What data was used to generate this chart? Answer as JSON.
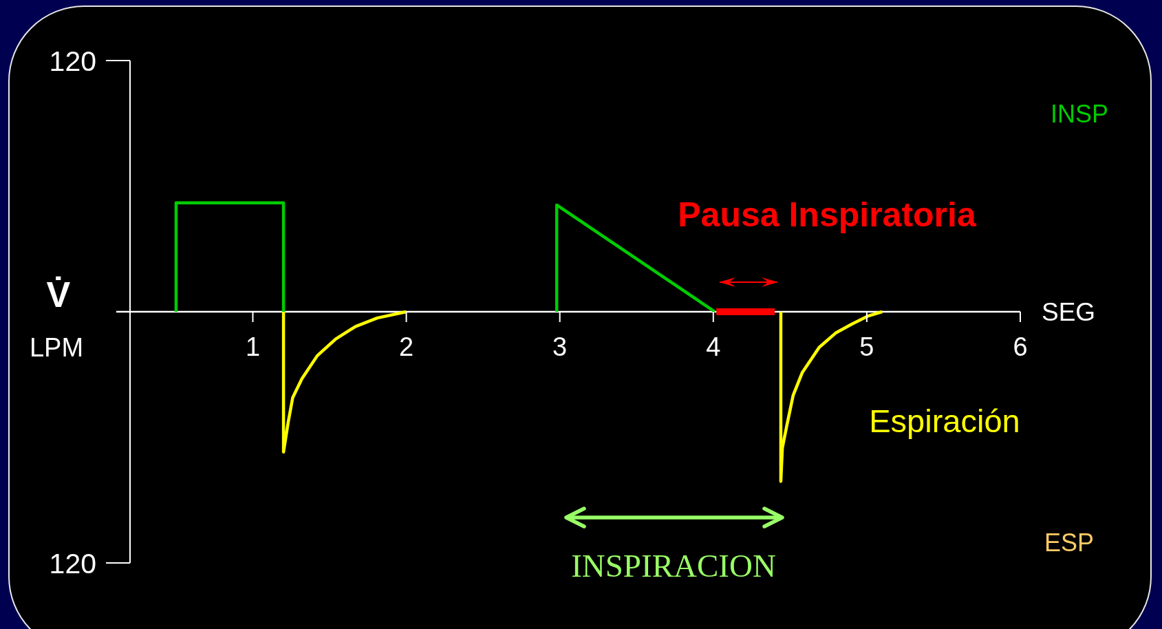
{
  "chart_data": {
    "type": "line",
    "xlabel": "SEG",
    "ylabel": "V̇ LPM",
    "xlim": [
      0.2,
      6
    ],
    "xticks": [
      1,
      2,
      3,
      4,
      5,
      6
    ],
    "ylim": [
      -120,
      120
    ],
    "yticks": [
      120,
      {
        "value": -120,
        "label": "120"
      }
    ],
    "series": [
      {
        "color": "#00cc00",
        "x": [
          0.5,
          0.5,
          1.2,
          1.2
        ],
        "values": [
          0,
          52,
          52,
          0
        ]
      },
      {
        "color": "#ffff00",
        "x": [
          1.2,
          1.2,
          1.23,
          1.26,
          1.32,
          1.42,
          1.54,
          1.67,
          1.81,
          2.0
        ],
        "values": [
          0,
          -67,
          -53,
          -41,
          -32,
          -21,
          -13,
          -7,
          -3,
          0
        ]
      },
      {
        "color": "#00cc00",
        "x": [
          2.98,
          2.98,
          4.01
        ],
        "values": [
          0,
          51,
          0
        ]
      },
      {
        "color": "#ff0000",
        "x": [
          4.02,
          4.4
        ],
        "values": [
          0,
          0
        ]
      },
      {
        "color": "#ffff00",
        "x": [
          4.44,
          4.44,
          4.45,
          4.48,
          4.52,
          4.58,
          4.69,
          4.8,
          4.9,
          5.01,
          5.1
        ],
        "values": [
          0,
          -81,
          -65,
          -54,
          -40,
          -29,
          -17,
          -10,
          -6,
          -2,
          0
        ]
      }
    ],
    "annotations": [
      "Pausa Inspiratoria",
      "INSPIRACION",
      "Espiración",
      "INSP",
      "ESP"
    ]
  }
}
